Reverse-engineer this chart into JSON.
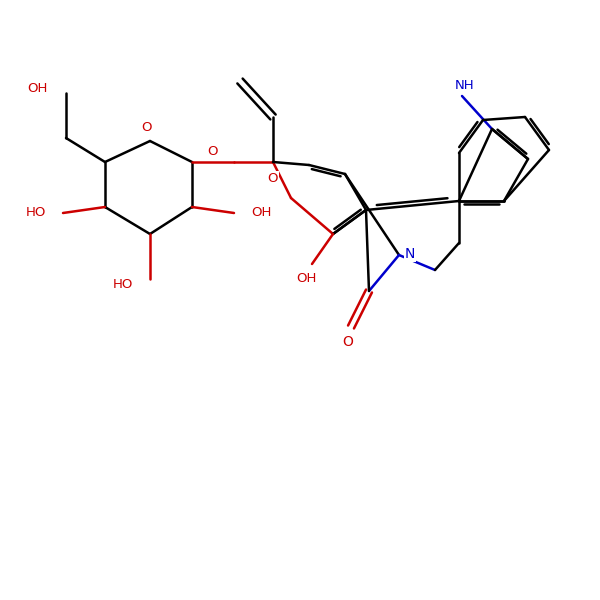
{
  "bg": "#ffffff",
  "bk": "#000000",
  "rd": "#cc0000",
  "bl": "#0000cc",
  "lw": 1.8,
  "fs": 9.5,
  "figsize": [
    6.0,
    6.0
  ],
  "dpi": 100,
  "xlim": [
    0,
    10
  ],
  "ylim": [
    0,
    10
  ]
}
